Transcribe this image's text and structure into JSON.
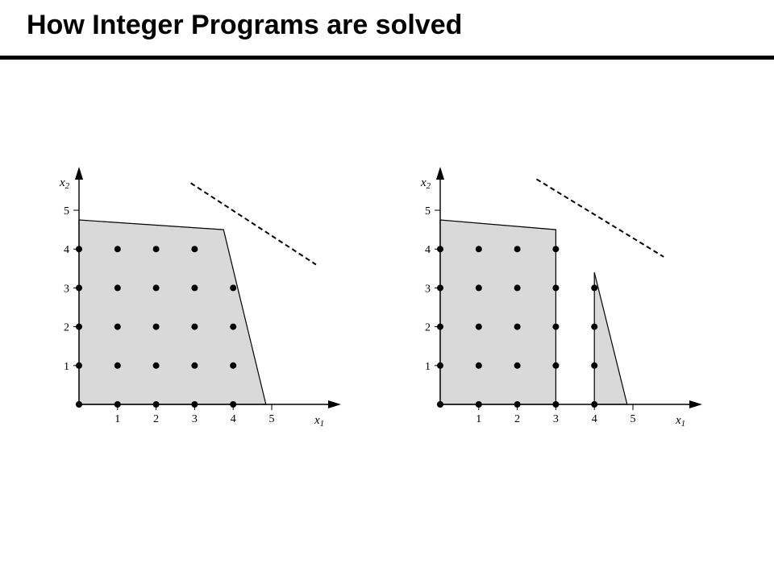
{
  "slide": {
    "title": "How Integer Programs are solved"
  },
  "colors": {
    "feasible_fill": "#d9d9d9",
    "ink": "#000000"
  },
  "diagrams": [
    {
      "name": "lp-relaxation",
      "x_axis": {
        "label": "x",
        "subscript": "1",
        "ticks": [
          "1",
          "2",
          "3",
          "4",
          "5"
        ]
      },
      "y_axis": {
        "label": "x",
        "subscript": "2",
        "ticks": [
          "1",
          "2",
          "3",
          "4",
          "5"
        ]
      },
      "regions": [
        [
          [
            0,
            0
          ],
          [
            0,
            4.75
          ],
          [
            3.75,
            4.5
          ],
          [
            4.85,
            0
          ]
        ]
      ],
      "integer_points": [
        [
          0,
          0
        ],
        [
          1,
          0
        ],
        [
          2,
          0
        ],
        [
          3,
          0
        ],
        [
          4,
          0
        ],
        [
          0,
          1
        ],
        [
          1,
          1
        ],
        [
          2,
          1
        ],
        [
          3,
          1
        ],
        [
          4,
          1
        ],
        [
          0,
          2
        ],
        [
          1,
          2
        ],
        [
          2,
          2
        ],
        [
          3,
          2
        ],
        [
          4,
          2
        ],
        [
          0,
          3
        ],
        [
          1,
          3
        ],
        [
          2,
          3
        ],
        [
          3,
          3
        ],
        [
          4,
          3
        ],
        [
          0,
          4
        ],
        [
          1,
          4
        ],
        [
          2,
          4
        ],
        [
          3,
          4
        ]
      ],
      "objective_line": [
        [
          2.9,
          5.7
        ],
        [
          6.15,
          3.6
        ]
      ]
    },
    {
      "name": "after-branching",
      "x_axis": {
        "label": "x",
        "subscript": "1",
        "ticks": [
          "1",
          "2",
          "3",
          "4",
          "5"
        ]
      },
      "y_axis": {
        "label": "x",
        "subscript": "2",
        "ticks": [
          "1",
          "2",
          "3",
          "4",
          "5"
        ]
      },
      "regions": [
        [
          [
            0,
            0
          ],
          [
            0,
            4.75
          ],
          [
            3,
            4.5
          ],
          [
            3,
            0
          ]
        ],
        [
          [
            4,
            0
          ],
          [
            4,
            3.4
          ],
          [
            4.85,
            0
          ]
        ]
      ],
      "integer_points": [
        [
          0,
          0
        ],
        [
          1,
          0
        ],
        [
          2,
          0
        ],
        [
          3,
          0
        ],
        [
          4,
          0
        ],
        [
          0,
          1
        ],
        [
          1,
          1
        ],
        [
          2,
          1
        ],
        [
          3,
          1
        ],
        [
          4,
          1
        ],
        [
          0,
          2
        ],
        [
          1,
          2
        ],
        [
          2,
          2
        ],
        [
          3,
          2
        ],
        [
          4,
          2
        ],
        [
          0,
          3
        ],
        [
          1,
          3
        ],
        [
          2,
          3
        ],
        [
          3,
          3
        ],
        [
          4,
          3
        ],
        [
          0,
          4
        ],
        [
          1,
          4
        ],
        [
          2,
          4
        ],
        [
          3,
          4
        ]
      ],
      "objective_line": [
        [
          2.5,
          5.8
        ],
        [
          5.8,
          3.8
        ]
      ]
    }
  ]
}
